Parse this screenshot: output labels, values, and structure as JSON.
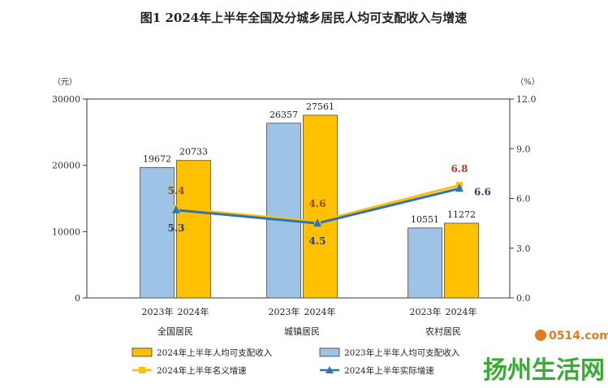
{
  "chart_data": {
    "type": "bar",
    "title": "图1    2024年上半年全国及分城乡居民人均可支配收入与增速",
    "y_left_unit": "（元）",
    "y_right_unit": "（%）",
    "y_left_ticks": [
      "0",
      "10000",
      "20000",
      "30000"
    ],
    "y_right_ticks": [
      "0.0",
      "3.0",
      "6.0",
      "9.0",
      "12.0"
    ],
    "ylim_left": [
      0,
      30000
    ],
    "ylim_right": [
      0,
      12
    ],
    "groups": [
      {
        "name": "全国居民",
        "bar_labels": [
          "2023年",
          "2024年"
        ]
      },
      {
        "name": "城镇居民",
        "bar_labels": [
          "2023年",
          "2024年"
        ]
      },
      {
        "name": "农村居民",
        "bar_labels": [
          "2023年",
          "2024年"
        ]
      }
    ],
    "series": [
      {
        "name": "2023年上半年人均可支配收入",
        "kind": "bar",
        "color": "#9dc3e6",
        "values": [
          19672,
          26357,
          10551
        ],
        "labels": [
          "19672",
          "26357",
          "10551"
        ]
      },
      {
        "name": "2024年上半年人均可支配收入",
        "kind": "bar",
        "color": "#ffc000",
        "values": [
          20733,
          27561,
          11272
        ],
        "labels": [
          "20733",
          "27561",
          "11272"
        ]
      },
      {
        "name": "2024年上半年名义增速",
        "kind": "line",
        "axis": "right",
        "color": "#ffc000",
        "values": [
          5.4,
          4.6,
          6.8
        ],
        "labels": [
          "5.4",
          "4.6",
          "6.8"
        ]
      },
      {
        "name": "2024年上半年实际增速",
        "kind": "line",
        "axis": "right",
        "color": "#2e75b6",
        "values": [
          5.3,
          4.5,
          6.6
        ],
        "labels": [
          "5.3",
          "4.5",
          "6.6"
        ]
      }
    ],
    "legend": "bottom"
  },
  "watermark": {
    "small": "0514.com",
    "site": "扬州生活网"
  }
}
